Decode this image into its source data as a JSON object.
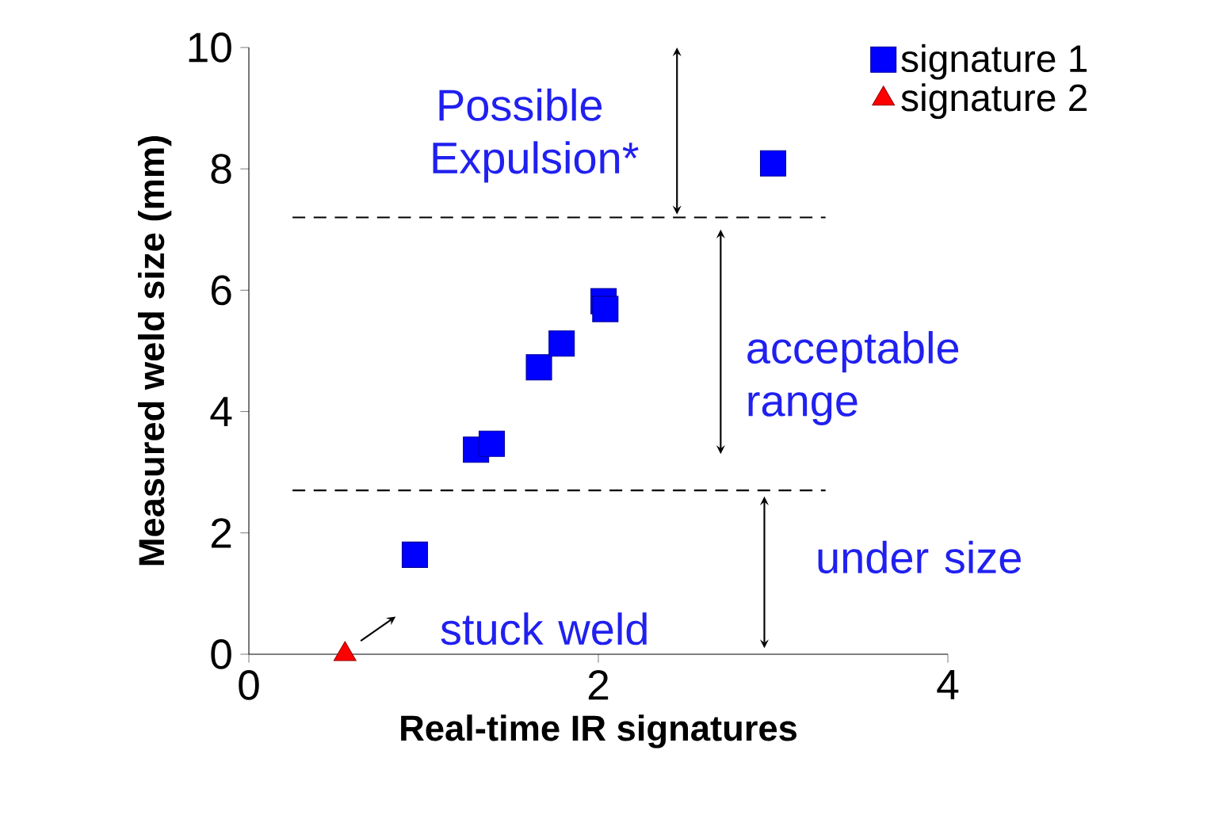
{
  "chart_data": {
    "type": "scatter",
    "xlabel": "Real-time IR signatures",
    "ylabel": "Measured weld size (mm)",
    "xlim": [
      0,
      4
    ],
    "xticks": [
      0,
      2,
      4
    ],
    "ylim": [
      0,
      10
    ],
    "yticks": [
      0,
      2,
      4,
      6,
      8,
      10
    ],
    "grid": false,
    "legend": "top right",
    "series": [
      {
        "name": "signature 1",
        "color": "#0000ff",
        "marker": "square",
        "x": [
          0.95,
          1.3,
          1.39,
          1.66,
          1.79,
          2.03,
          2.04,
          3.0
        ],
        "values": [
          1.64,
          3.37,
          3.47,
          4.73,
          5.12,
          5.82,
          5.69,
          8.09
        ]
      },
      {
        "name": "signature 2",
        "color": "#ff0000",
        "marker": "triangle",
        "x": [
          0.55
        ],
        "values": [
          0.0
        ]
      }
    ],
    "ref_lines": [
      {
        "axis": "y",
        "value": 7.2,
        "line_style": "dashed",
        "color": "#000000"
      },
      {
        "axis": "y",
        "value": 2.7,
        "line_style": "dashed",
        "color": "#000000"
      }
    ],
    "annotations": [
      "Possible Expulsion*",
      "acceptable range",
      "under size",
      "stuck weld"
    ]
  }
}
